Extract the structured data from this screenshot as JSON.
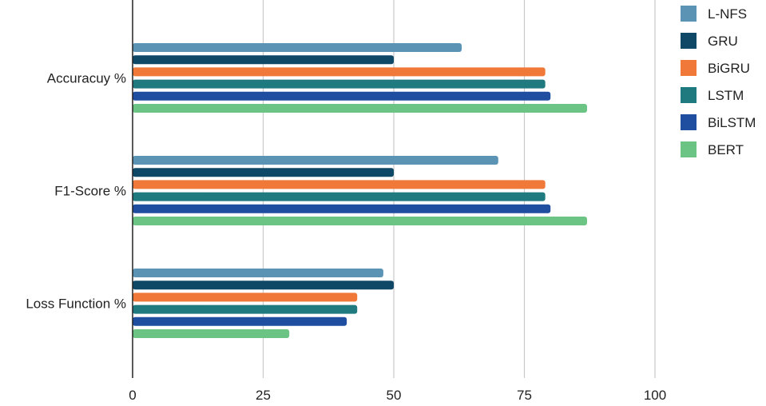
{
  "chart_data": {
    "type": "bar",
    "orientation": "horizontal",
    "categories": [
      "Accuracuy %",
      "F1-Score %",
      "Loss Function %"
    ],
    "series": [
      {
        "name": "L-NFS",
        "color": "#5b93b5",
        "values": [
          63,
          70,
          48
        ]
      },
      {
        "name": "GRU",
        "color": "#0f4766",
        "values": [
          50,
          50,
          50
        ]
      },
      {
        "name": "BiGRU",
        "color": "#f07838",
        "values": [
          79,
          79,
          43
        ]
      },
      {
        "name": "LSTM",
        "color": "#1f7a80",
        "values": [
          79,
          79,
          43
        ]
      },
      {
        "name": "BiLSTM",
        "color": "#1f4da0",
        "values": [
          80,
          80,
          41
        ]
      },
      {
        "name": "BERT",
        "color": "#6cc484",
        "values": [
          87,
          87,
          30
        ]
      }
    ],
    "xlim": [
      0,
      100
    ],
    "xticks": [
      "0",
      "25",
      "50",
      "75",
      "100"
    ],
    "grid": "vertical",
    "legend": "right"
  }
}
